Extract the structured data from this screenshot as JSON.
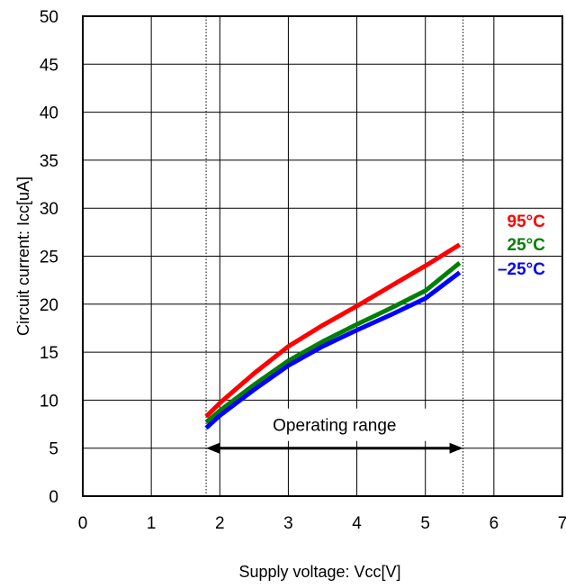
{
  "chart_data": {
    "type": "line",
    "xlabel": "Supply voltage: Vcc[V]",
    "ylabel": "Circuit current: Icc[uA]",
    "xlim": [
      0,
      7
    ],
    "ylim": [
      0,
      50
    ],
    "x_ticks": [
      "0",
      "1",
      "2",
      "3",
      "4",
      "5",
      "6",
      "7"
    ],
    "y_ticks": [
      "0",
      "5",
      "10",
      "15",
      "20",
      "25",
      "30",
      "35",
      "40",
      "45",
      "50"
    ],
    "grid": true,
    "series": [
      {
        "name": "95°C",
        "color": "#ff0000",
        "x": [
          1.8,
          2.0,
          2.5,
          3.0,
          3.5,
          4.0,
          4.5,
          5.0,
          5.5
        ],
        "y": [
          8.3,
          9.7,
          12.8,
          15.6,
          17.8,
          19.8,
          21.9,
          24.0,
          26.2
        ]
      },
      {
        "name": "25°C",
        "color": "#008000",
        "x": [
          1.8,
          2.0,
          2.5,
          3.0,
          3.5,
          4.0,
          4.5,
          5.0,
          5.5
        ],
        "y": [
          7.7,
          8.9,
          11.6,
          14.1,
          16.1,
          17.9,
          19.6,
          21.4,
          24.3
        ]
      },
      {
        "name": "–25°C",
        "color": "#0000ff",
        "x": [
          1.8,
          2.0,
          2.5,
          3.0,
          3.5,
          4.0,
          4.5,
          5.0,
          5.5
        ],
        "y": [
          7.1,
          8.4,
          11.1,
          13.6,
          15.6,
          17.3,
          18.9,
          20.6,
          23.3
        ]
      }
    ],
    "annotation": {
      "text": "Operating range",
      "x_start": 1.8,
      "x_end": 5.55,
      "y": 5
    }
  }
}
